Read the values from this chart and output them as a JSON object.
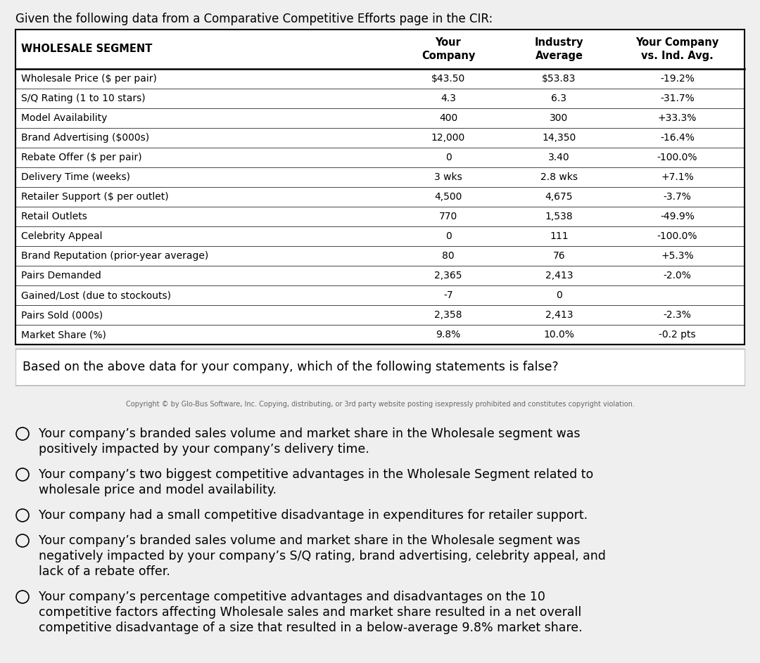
{
  "title": "Given the following data from a Comparative Competitive Efforts page in the CIR:",
  "question": "Based on the above data for your company, which of the following statements is false?",
  "copyright": "Copyright © by Glo-Bus Software, Inc. Copying, distributing, or 3rd party website posting isexpressly prohibited and constitutes copyright violation.",
  "rows": [
    [
      "Wholesale Price ($ per pair)",
      "$43.50",
      "$53.83",
      "-19.2%"
    ],
    [
      "S/Q Rating (1 to 10 stars)",
      "4.3",
      "6.3",
      "-31.7%"
    ],
    [
      "Model Availability",
      "400",
      "300",
      "+33.3%"
    ],
    [
      "Brand Advertising ($000s)",
      "12,000",
      "14,350",
      "-16.4%"
    ],
    [
      "Rebate Offer ($ per pair)",
      "0",
      "3.40",
      "-100.0%"
    ],
    [
      "Delivery Time (weeks)",
      "3 wks",
      "2.8 wks",
      "+7.1%"
    ],
    [
      "Retailer Support ($ per outlet)",
      "4,500",
      "4,675",
      "-3.7%"
    ],
    [
      "Retail Outlets",
      "770",
      "1,538",
      "-49.9%"
    ],
    [
      "Celebrity Appeal",
      "0",
      "111",
      "-100.0%"
    ],
    [
      "Brand Reputation (prior-year average)",
      "80",
      "76",
      "+5.3%"
    ],
    [
      "Pairs Demanded",
      "2,365",
      "2,413",
      "-2.0%"
    ],
    [
      "Gained/Lost (due to stockouts)",
      "-7",
      "0",
      ""
    ],
    [
      "Pairs Sold (000s)",
      "2,358",
      "2,413",
      "-2.3%"
    ],
    [
      "Market Share (%)",
      "9.8%",
      "10.0%",
      "-0.2 pts"
    ]
  ],
  "options": [
    [
      "Your company’s branded sales volume and market share in the Wholesale segment was",
      "positively impacted by your company’s delivery time."
    ],
    [
      "Your company’s two biggest competitive advantages in the Wholesale Segment related to",
      "wholesale price and model availability."
    ],
    [
      "Your company had a small competitive disadvantage in expenditures for retailer support."
    ],
    [
      "Your company’s branded sales volume and market share in the Wholesale segment was",
      "negatively impacted by your company’s S/Q rating, brand advertising, celebrity appeal, and",
      "lack of a rebate offer."
    ],
    [
      "Your company’s percentage competitive advantages and disadvantages on the 10",
      "competitive factors affecting Wholesale sales and market share resulted in a net overall",
      "competitive disadvantage of a size that resulted in a below-average 9.8% market share."
    ]
  ],
  "bg_color": "#efefef",
  "font_color": "#000000"
}
